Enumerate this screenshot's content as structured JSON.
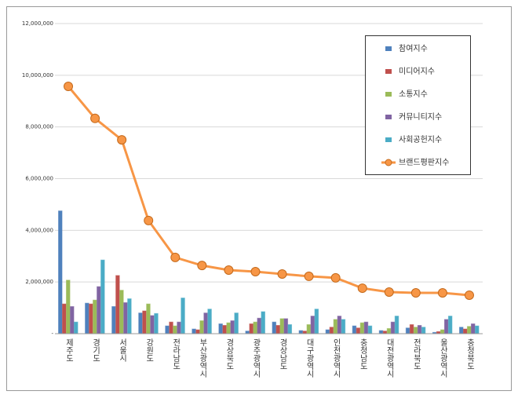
{
  "chart_data": {
    "type": "bar",
    "categories": [
      "제주도",
      "경기도",
      "서울시",
      "강원도",
      "전라남도",
      "부산광역시",
      "경상북도",
      "광주광역시",
      "경상남도",
      "대구광역시",
      "인천광역시",
      "충청남도",
      "대전광역시",
      "전라북도",
      "울산광역시",
      "충청북도"
    ],
    "series": [
      {
        "name": "참여지수",
        "color": "#4f81bd",
        "values": [
          4750000,
          1180000,
          1050000,
          800000,
          300000,
          180000,
          380000,
          100000,
          450000,
          120000,
          150000,
          300000,
          120000,
          220000,
          50000,
          250000
        ]
      },
      {
        "name": "미디어지수",
        "color": "#c0504d",
        "values": [
          1150000,
          1150000,
          2250000,
          880000,
          450000,
          150000,
          320000,
          380000,
          320000,
          100000,
          250000,
          220000,
          100000,
          350000,
          80000,
          180000
        ]
      },
      {
        "name": "소통지수",
        "color": "#9bbb59",
        "values": [
          2070000,
          1300000,
          1680000,
          1150000,
          300000,
          500000,
          420000,
          450000,
          580000,
          350000,
          550000,
          420000,
          200000,
          250000,
          150000,
          280000
        ]
      },
      {
        "name": "커뮤니티지수",
        "color": "#8064a2",
        "values": [
          1050000,
          1820000,
          1200000,
          700000,
          450000,
          800000,
          500000,
          600000,
          580000,
          680000,
          680000,
          450000,
          450000,
          320000,
          550000,
          380000
        ]
      },
      {
        "name": "사회공헌지수",
        "color": "#4bacc6",
        "values": [
          450000,
          2850000,
          1350000,
          780000,
          1380000,
          950000,
          800000,
          850000,
          350000,
          950000,
          550000,
          300000,
          680000,
          250000,
          680000,
          300000
        ]
      },
      {
        "name": "브랜드평판지수",
        "color": "#f79646",
        "type": "line",
        "values": [
          9570000,
          8330000,
          7500000,
          4380000,
          2950000,
          2640000,
          2460000,
          2400000,
          2310000,
          2220000,
          2160000,
          1760000,
          1610000,
          1580000,
          1580000,
          1490000
        ]
      }
    ],
    "ylim": [
      0,
      12000000
    ],
    "yticks": [
      {
        "value": 0,
        "label": "-"
      },
      {
        "value": 2000000,
        "label": "2,000,000"
      },
      {
        "value": 4000000,
        "label": "4,000,000"
      },
      {
        "value": 6000000,
        "label": "6,000,000"
      },
      {
        "value": 8000000,
        "label": "8,000,000"
      },
      {
        "value": 10000000,
        "label": "10,000,000"
      },
      {
        "value": 12000000,
        "label": "12,000,000"
      }
    ],
    "grid": true
  }
}
